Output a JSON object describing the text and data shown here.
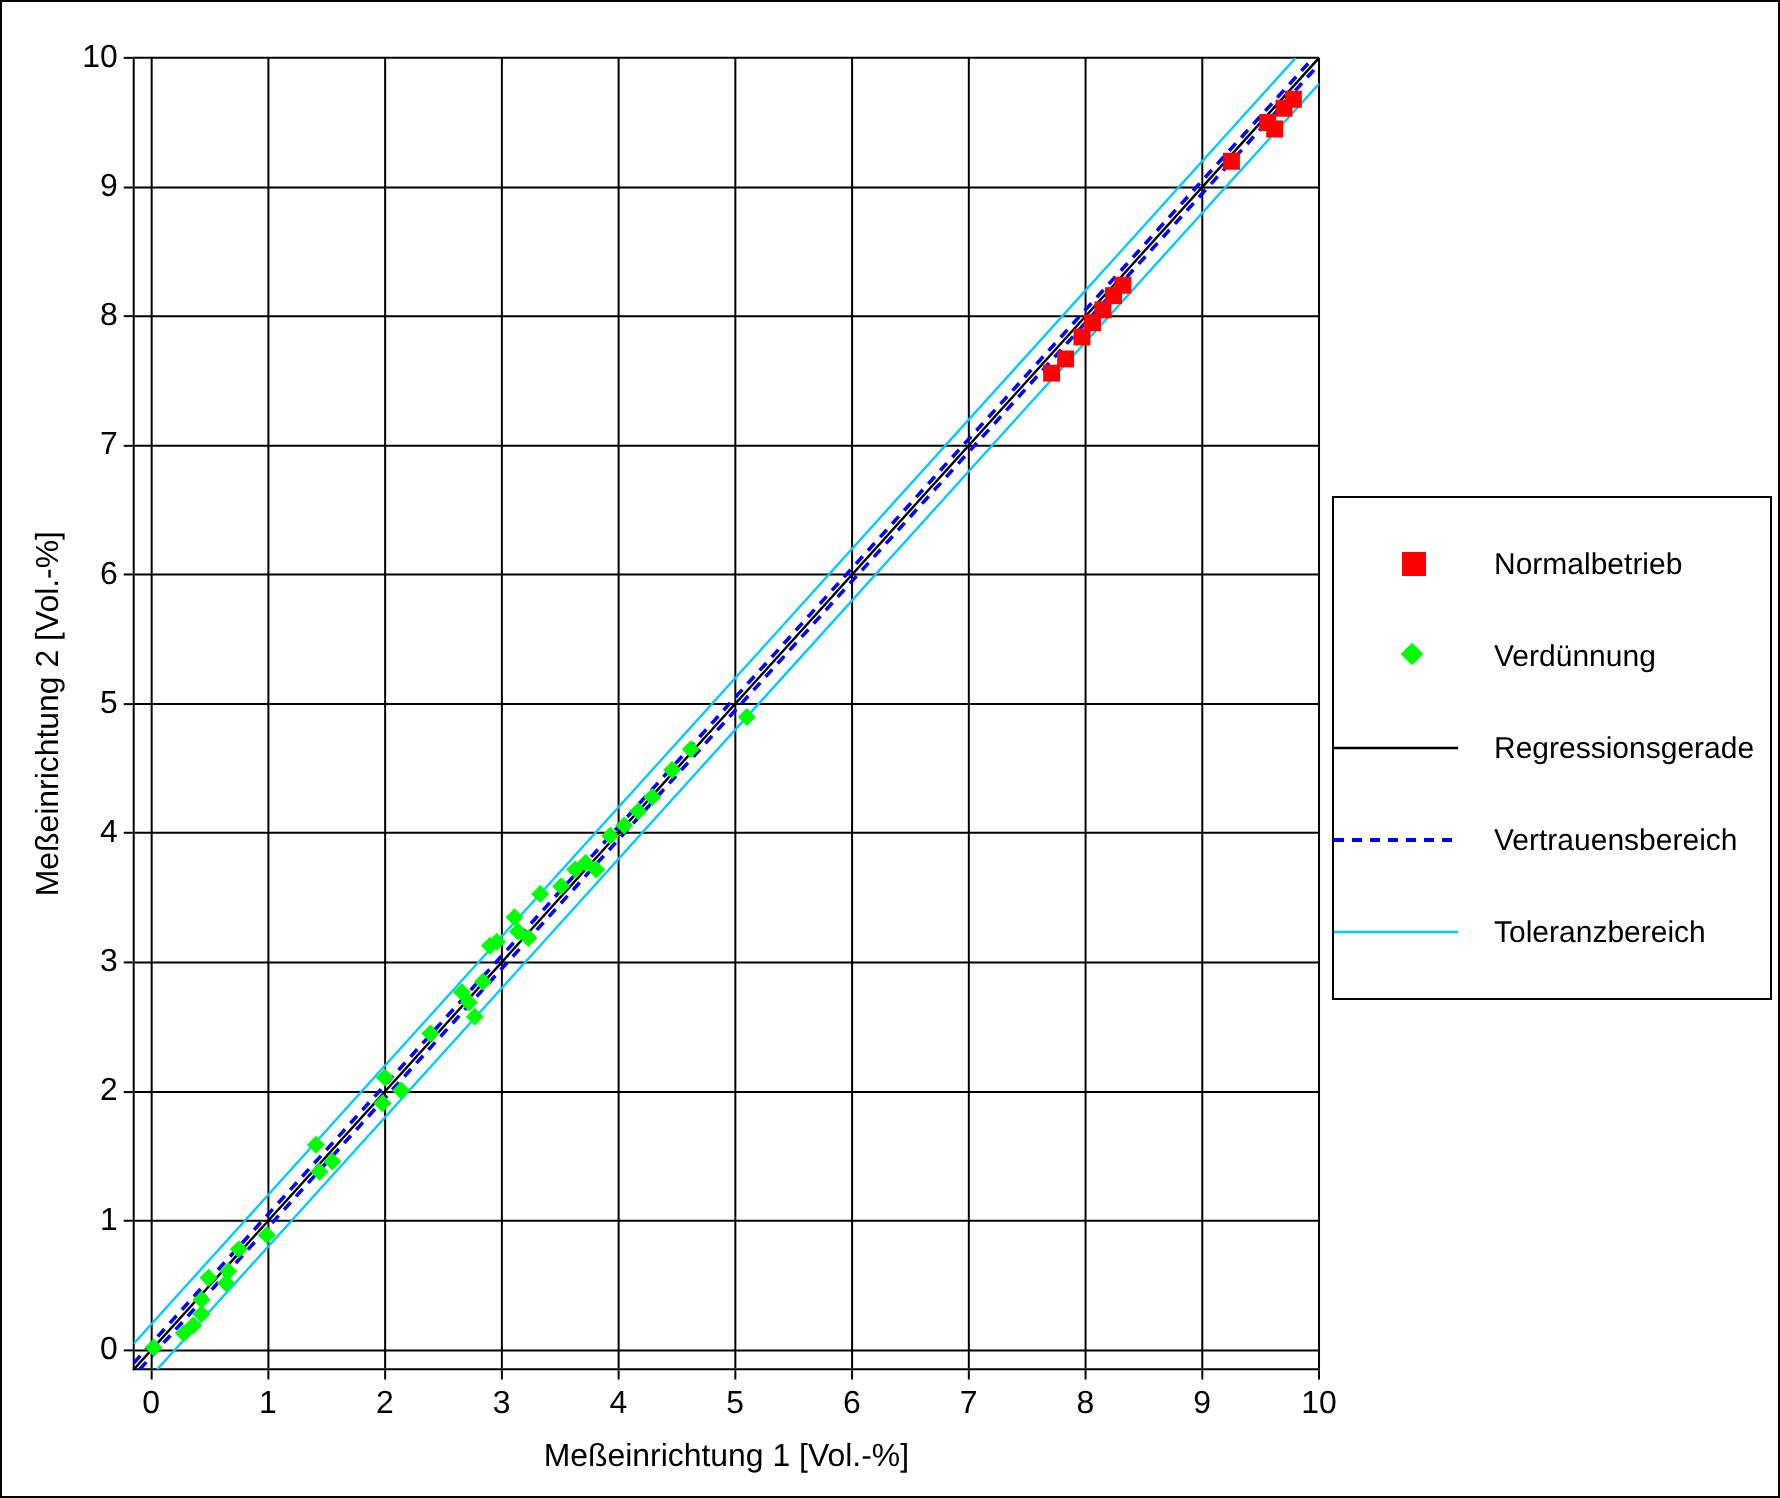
{
  "chart_data": {
    "type": "scatter",
    "xlabel": "Meßeinrichtung 1 [Vol.-%]",
    "ylabel": "Meßeinrichtung 2 [Vol.-%]",
    "xlim": [
      -0.15,
      10
    ],
    "ylim": [
      -0.15,
      10
    ],
    "xticks": [
      0,
      1,
      2,
      3,
      4,
      5,
      6,
      7,
      8,
      9,
      10
    ],
    "yticks": [
      0,
      1,
      2,
      3,
      4,
      5,
      6,
      7,
      8,
      9,
      10
    ],
    "grid": true,
    "legend": "right",
    "series": [
      {
        "name": "Normalbetrieb",
        "type": "scatter",
        "marker": "square",
        "color": "#ff0000",
        "x": [
          7.71,
          7.83,
          7.97,
          8.06,
          8.15,
          8.24,
          8.32,
          9.25,
          9.56,
          9.62,
          9.7,
          9.78
        ],
        "values": [
          7.56,
          7.67,
          7.84,
          7.95,
          8.05,
          8.16,
          8.24,
          9.2,
          9.5,
          9.45,
          9.61,
          9.68
        ]
      },
      {
        "name": "Verdünnung",
        "type": "scatter",
        "marker": "diamond",
        "color": "#00ff00",
        "x": [
          0.02,
          0.28,
          0.36,
          0.43,
          0.43,
          0.49,
          0.64,
          0.66,
          0.75,
          0.99,
          1.41,
          1.44,
          1.55,
          2.0,
          1.98,
          2.14,
          2.39,
          2.66,
          2.72,
          2.77,
          2.84,
          2.9,
          2.96,
          3.11,
          3.14,
          3.23,
          3.33,
          3.51,
          3.63,
          3.81,
          3.72,
          3.93,
          4.05,
          4.17,
          4.29,
          4.46,
          4.62,
          5.1
        ],
        "values": [
          0.02,
          0.13,
          0.19,
          0.28,
          0.39,
          0.56,
          0.52,
          0.61,
          0.78,
          0.89,
          1.59,
          1.38,
          1.46,
          2.11,
          1.91,
          2.01,
          2.45,
          2.77,
          2.69,
          2.58,
          2.85,
          3.13,
          3.16,
          3.35,
          3.24,
          3.19,
          3.53,
          3.59,
          3.72,
          3.72,
          3.77,
          3.98,
          4.06,
          4.17,
          4.28,
          4.49,
          4.65,
          4.9
        ]
      },
      {
        "name": "Regressionsgerade",
        "type": "line",
        "marker": "none",
        "line_style": "solid",
        "color": "#000000",
        "x": [
          -0.15,
          10
        ],
        "values": [
          -0.15,
          10
        ]
      },
      {
        "name": "Vertrauensbereich",
        "type": "line",
        "marker": "none",
        "line_style": "dashed",
        "color": "#0000ff",
        "x": [
          -0.15,
          9.95
        ],
        "values": [
          -0.1,
          10
        ]
      },
      {
        "type": "line",
        "marker": "none",
        "line_style": "dashed",
        "color": "#0000ff",
        "x": [
          -0.1,
          10
        ],
        "values": [
          -0.15,
          9.95
        ]
      },
      {
        "name": "Toleranzbereich",
        "type": "line",
        "marker": "none",
        "line_style": "solid",
        "color": "#00ccff",
        "x": [
          -0.15,
          9.8
        ],
        "values": [
          0.05,
          10
        ]
      },
      {
        "type": "line",
        "marker": "none",
        "line_style": "solid",
        "color": "#00ccff",
        "x": [
          0.05,
          10
        ],
        "values": [
          -0.15,
          9.8
        ]
      }
    ]
  }
}
